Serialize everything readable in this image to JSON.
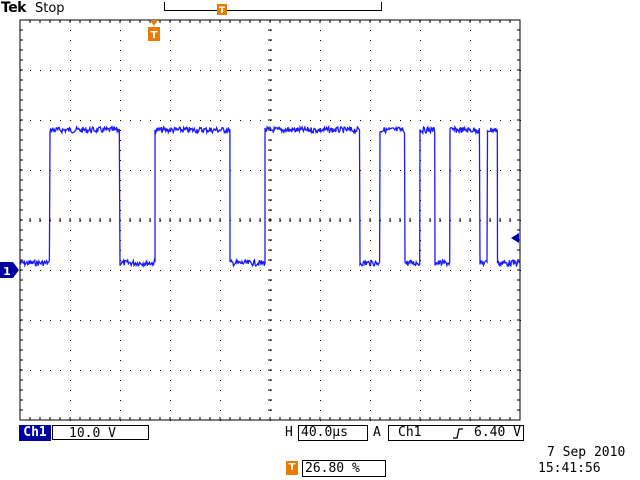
{
  "header": {
    "brand": "Tek",
    "run_state": "Stop"
  },
  "markers": {
    "trigger_marker": "T",
    "channel_marker": "1"
  },
  "status": {
    "channel_label": "Ch1",
    "channel_scale": "10.0 V",
    "horizontal_label": "H",
    "horizontal_scale": "40.0µs",
    "trigger_mode": "A",
    "trigger_source": "Ch1",
    "trigger_level": "6.40 V",
    "date": "7 Sep  2010",
    "time": "15:41:56",
    "horizontal_position": "26.80 %"
  },
  "colors": {
    "trace": "#1a1aff",
    "channel": "#0000a0",
    "trigger": "#e87b00"
  },
  "waveform": {
    "high_level": "high",
    "segments": [
      [
        0,
        0.06,
        0
      ],
      [
        0.06,
        0.2,
        1
      ],
      [
        0.2,
        0.27,
        0
      ],
      [
        0.27,
        0.42,
        1
      ],
      [
        0.42,
        0.49,
        0
      ],
      [
        0.49,
        0.68,
        1
      ],
      [
        0.68,
        0.72,
        0
      ],
      [
        0.72,
        0.77,
        1
      ],
      [
        0.77,
        0.8,
        0
      ],
      [
        0.8,
        0.83,
        1
      ],
      [
        0.83,
        0.86,
        0
      ],
      [
        0.86,
        0.92,
        1
      ],
      [
        0.92,
        0.935,
        0
      ],
      [
        0.935,
        0.955,
        1
      ],
      [
        0.955,
        1.0,
        0
      ]
    ]
  }
}
